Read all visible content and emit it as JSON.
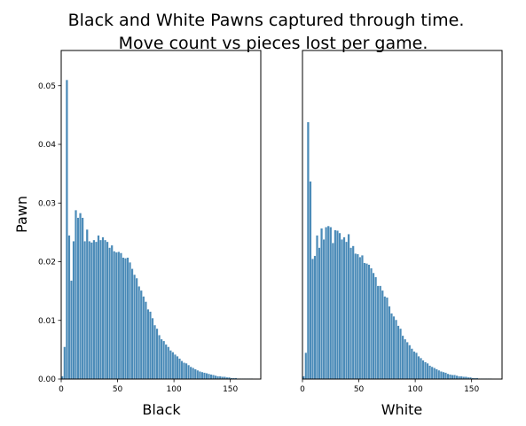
{
  "title_line1": "Black and White Pawns captured through time.",
  "title_line2": "Move count vs pieces lost per game.",
  "bar_color": "#4b8bb8",
  "chart_data": [
    {
      "type": "bar",
      "panel": "black",
      "xlabel": "Black",
      "ylabel": "Pawn",
      "xlim": [
        0,
        177
      ],
      "ylim": [
        0,
        0.056
      ],
      "xticks": [
        "0",
        "50",
        "100",
        "150"
      ],
      "yticks": [
        "0.00",
        "0.01",
        "0.02",
        "0.03",
        "0.04",
        "0.05"
      ],
      "bin_width": 2,
      "x": [
        1,
        3,
        5,
        7,
        9,
        11,
        13,
        15,
        17,
        19,
        21,
        23,
        25,
        27,
        29,
        31,
        33,
        35,
        37,
        39,
        41,
        43,
        45,
        47,
        49,
        51,
        53,
        55,
        57,
        59,
        61,
        63,
        65,
        67,
        69,
        71,
        73,
        75,
        77,
        79,
        81,
        83,
        85,
        87,
        89,
        91,
        93,
        95,
        97,
        99,
        101,
        103,
        105,
        107,
        109,
        111,
        113,
        115,
        117,
        119,
        121,
        123,
        125,
        127,
        129,
        131,
        133,
        135,
        137,
        139,
        141,
        143,
        145,
        147,
        149,
        151,
        153,
        155,
        157,
        159,
        161,
        163,
        165,
        167,
        169,
        171,
        173,
        175
      ],
      "values": [
        0.0005,
        0.0055,
        0.051,
        0.0245,
        0.0168,
        0.0235,
        0.0288,
        0.0275,
        0.0283,
        0.0275,
        0.0235,
        0.0255,
        0.0235,
        0.0233,
        0.0237,
        0.0234,
        0.0245,
        0.0237,
        0.0242,
        0.0237,
        0.0234,
        0.0224,
        0.0228,
        0.0218,
        0.0216,
        0.0217,
        0.0215,
        0.0207,
        0.0206,
        0.0207,
        0.0199,
        0.0188,
        0.0178,
        0.0172,
        0.0158,
        0.0151,
        0.0141,
        0.0132,
        0.0119,
        0.0115,
        0.0104,
        0.0092,
        0.0086,
        0.0075,
        0.0068,
        0.0065,
        0.0059,
        0.0055,
        0.0049,
        0.0046,
        0.0042,
        0.0039,
        0.0035,
        0.0031,
        0.0028,
        0.0027,
        0.0024,
        0.0021,
        0.0019,
        0.0017,
        0.0015,
        0.0013,
        0.0012,
        0.0011,
        0.001,
        0.0009,
        0.0008,
        0.0007,
        0.0006,
        0.0005,
        0.0005,
        0.0004,
        0.0004,
        0.0003,
        0.0003,
        0.0002,
        0.0002,
        0.0002,
        0.0001,
        0.0001,
        0.0001,
        0.0001,
        0.0001,
        0.0001,
        0.0001,
        0.0,
        0.0,
        0.0
      ]
    },
    {
      "type": "bar",
      "panel": "white",
      "xlabel": "White",
      "ylabel": "",
      "xlim": [
        0,
        177
      ],
      "ylim": [
        0,
        0.056
      ],
      "xticks": [
        "0",
        "50",
        "100",
        "150"
      ],
      "yticks": [],
      "bin_width": 2,
      "x": [
        1,
        3,
        5,
        7,
        9,
        11,
        13,
        15,
        17,
        19,
        21,
        23,
        25,
        27,
        29,
        31,
        33,
        35,
        37,
        39,
        41,
        43,
        45,
        47,
        49,
        51,
        53,
        55,
        57,
        59,
        61,
        63,
        65,
        67,
        69,
        71,
        73,
        75,
        77,
        79,
        81,
        83,
        85,
        87,
        89,
        91,
        93,
        95,
        97,
        99,
        101,
        103,
        105,
        107,
        109,
        111,
        113,
        115,
        117,
        119,
        121,
        123,
        125,
        127,
        129,
        131,
        133,
        135,
        137,
        139,
        141,
        143,
        145,
        147,
        149,
        151,
        153,
        155,
        157,
        159,
        161,
        163,
        165,
        167,
        169,
        171,
        173,
        175
      ],
      "values": [
        0.0005,
        0.0045,
        0.0438,
        0.0337,
        0.0205,
        0.021,
        0.0245,
        0.0224,
        0.0257,
        0.0238,
        0.0259,
        0.0261,
        0.0259,
        0.0232,
        0.0254,
        0.0253,
        0.0249,
        0.0238,
        0.0242,
        0.0234,
        0.0247,
        0.0224,
        0.0227,
        0.0214,
        0.0213,
        0.0208,
        0.0211,
        0.0198,
        0.0197,
        0.0195,
        0.0189,
        0.0181,
        0.0174,
        0.0159,
        0.0159,
        0.0151,
        0.0141,
        0.0139,
        0.0124,
        0.0112,
        0.0107,
        0.0101,
        0.0091,
        0.0086,
        0.0074,
        0.0068,
        0.0063,
        0.0058,
        0.0052,
        0.0047,
        0.0045,
        0.0039,
        0.0036,
        0.0032,
        0.0029,
        0.0027,
        0.0023,
        0.0021,
        0.0019,
        0.0017,
        0.0015,
        0.0013,
        0.0012,
        0.0011,
        0.0009,
        0.0008,
        0.0007,
        0.0007,
        0.0006,
        0.0005,
        0.0005,
        0.0004,
        0.0004,
        0.0003,
        0.0003,
        0.0002,
        0.0002,
        0.0002,
        0.0001,
        0.0001,
        0.0001,
        0.0001,
        0.0001,
        0.0001,
        0.0,
        0.0,
        0.0,
        0.0
      ]
    }
  ]
}
